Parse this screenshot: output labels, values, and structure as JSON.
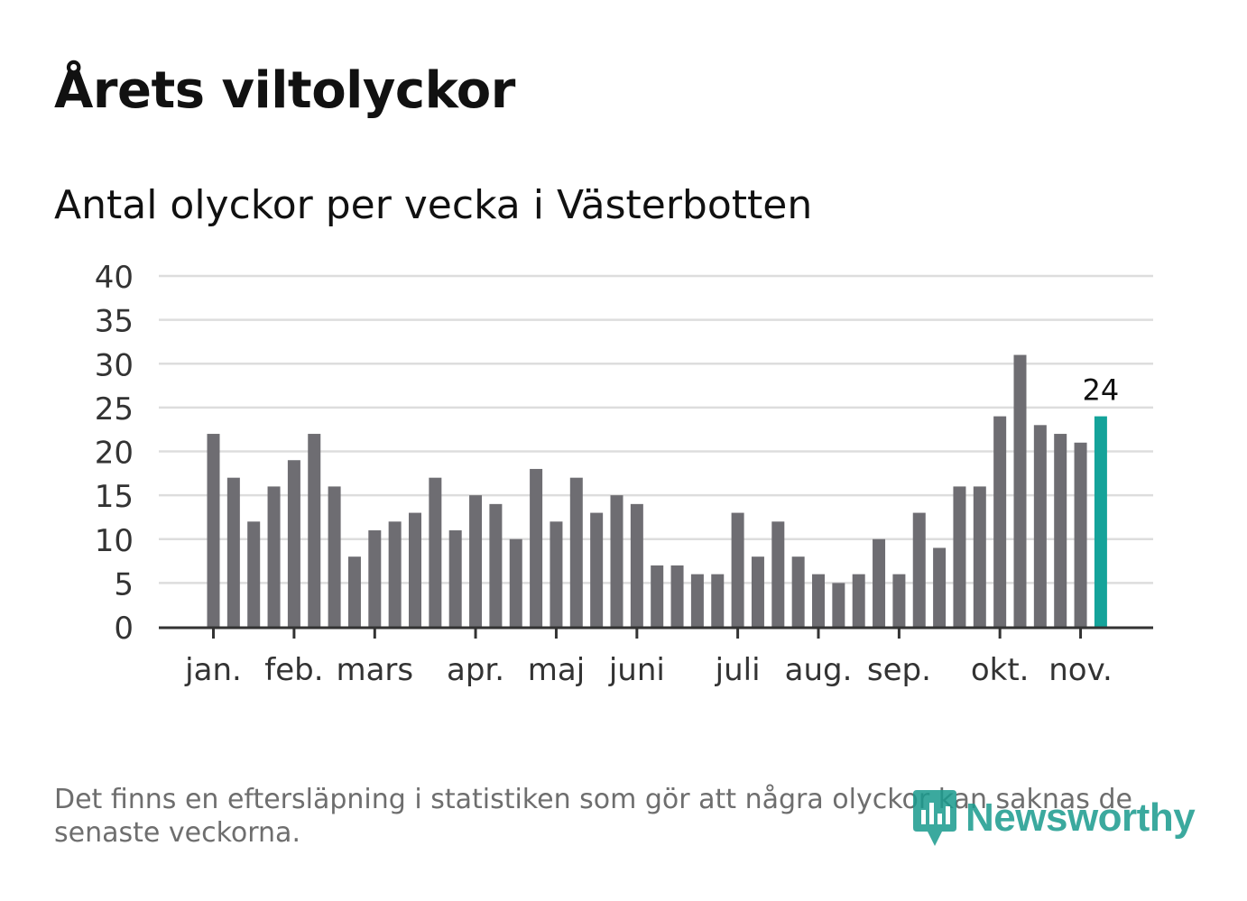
{
  "title": "Årets viltolyckor",
  "subtitle": "Antal olyckor per vecka i Västerbotten",
  "footnote": "Det finns en eftersläpning i statistiken som gör att några olyckor kan saknas de senaste veckorna.",
  "logo": {
    "name": "newsworthy-logo-icon",
    "text": "Newsworthy"
  },
  "colors": {
    "bar": "#6e6d72",
    "highlight": "#14a39a",
    "grid": "#dddddd",
    "axis": "#333333"
  },
  "chart_data": {
    "type": "bar",
    "title": "Årets viltolyckor",
    "subtitle": "Antal olyckor per vecka i Västerbotten",
    "xlabel": "",
    "ylabel": "",
    "ylim": [
      0,
      40
    ],
    "yticks": [
      "0",
      "5",
      "10",
      "15",
      "20",
      "25",
      "30",
      "35",
      "40"
    ],
    "values": [
      22,
      17,
      12,
      16,
      19,
      22,
      16,
      8,
      11,
      12,
      13,
      17,
      11,
      15,
      14,
      10,
      18,
      12,
      17,
      13,
      15,
      14,
      7,
      7,
      6,
      6,
      13,
      8,
      12,
      8,
      6,
      5,
      6,
      10,
      6,
      13,
      9,
      16,
      16,
      24,
      31,
      23,
      22,
      21,
      24
    ],
    "highlight_index": 44,
    "highlight_label": "24",
    "months": [
      {
        "label": "jan.",
        "week": 0
      },
      {
        "label": "feb.",
        "week": 4
      },
      {
        "label": "mars",
        "week": 8
      },
      {
        "label": "apr.",
        "week": 13
      },
      {
        "label": "maj",
        "week": 17
      },
      {
        "label": "juni",
        "week": 21
      },
      {
        "label": "juli",
        "week": 26
      },
      {
        "label": "aug.",
        "week": 30
      },
      {
        "label": "sep.",
        "week": 34
      },
      {
        "label": "okt.",
        "week": 39
      },
      {
        "label": "nov.",
        "week": 43
      }
    ],
    "grid": true
  }
}
